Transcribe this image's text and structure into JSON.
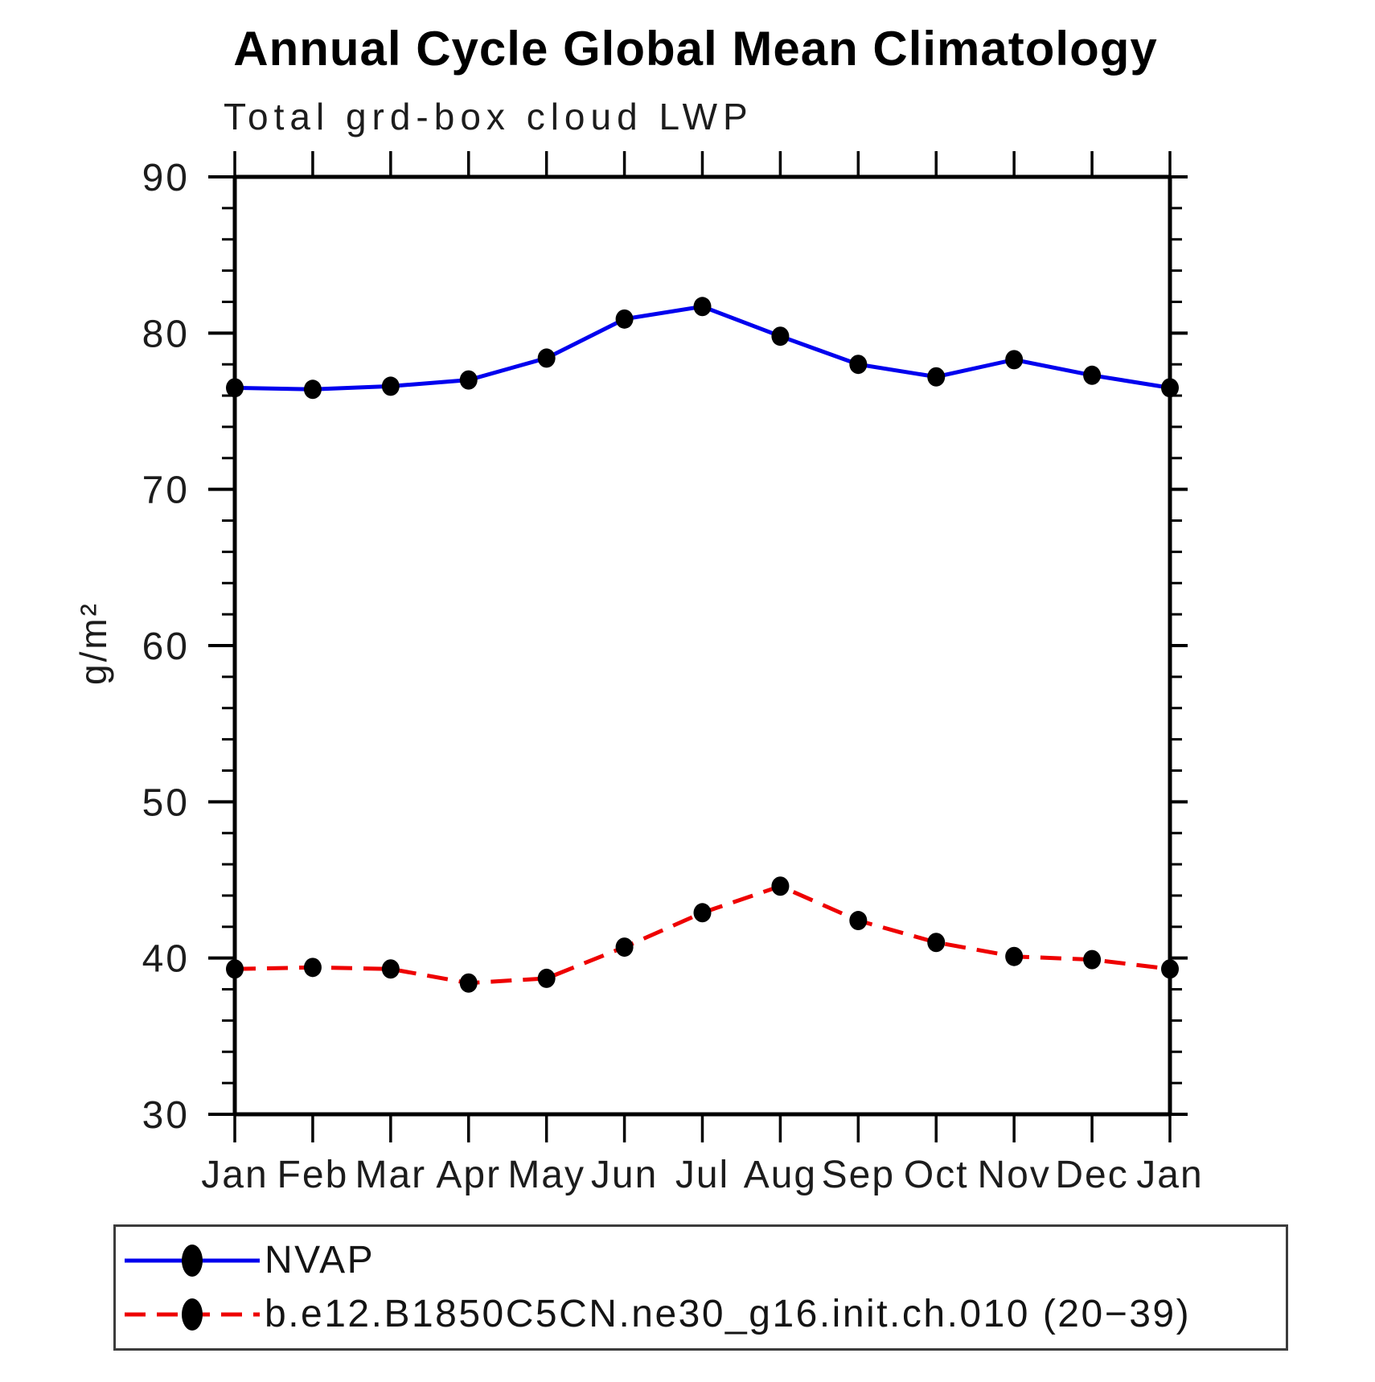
{
  "chart_data": {
    "type": "line",
    "title": "Annual Cycle Global Mean Climatology",
    "subtitle": "Total grd-box cloud LWP",
    "ylabel": "g/m²",
    "xlabel": "",
    "ylim": [
      30,
      90
    ],
    "ytick_major_step": 10,
    "ytick_minor_step": 2,
    "ytick_labels": [
      "30",
      "40",
      "50",
      "60",
      "70",
      "80",
      "90"
    ],
    "grid": false,
    "legend_position": "bottom",
    "axis_color": "#000000",
    "marker_color": "#000000",
    "categories": [
      "Jan",
      "Feb",
      "Mar",
      "Apr",
      "May",
      "Jun",
      "Jul",
      "Aug",
      "Sep",
      "Oct",
      "Nov",
      "Dec",
      "Jan"
    ],
    "series": [
      {
        "name": "NVAP",
        "color": "#0000ee",
        "style": "solid",
        "marker": "filled-circle",
        "values": [
          76.5,
          76.4,
          76.6,
          77.0,
          78.4,
          80.9,
          81.7,
          79.8,
          78.0,
          77.2,
          78.3,
          77.3,
          76.5
        ]
      },
      {
        "name": "b.e12.B1850C5CN.ne30_g16.init.ch.010 (20−39)",
        "color": "#ee0000",
        "style": "dashed",
        "marker": "filled-circle",
        "values": [
          39.3,
          39.4,
          39.3,
          38.4,
          38.7,
          40.7,
          42.9,
          44.6,
          42.4,
          41.0,
          40.1,
          39.9,
          39.3
        ]
      }
    ]
  }
}
